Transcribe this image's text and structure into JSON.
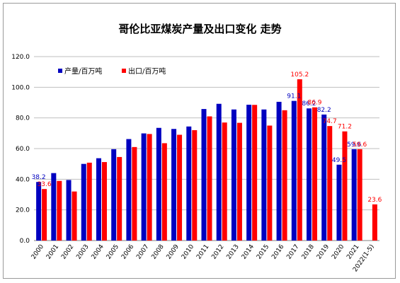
{
  "chart_data": {
    "type": "bar",
    "title": "哥伦比亚煤炭产量及出口变化 走势",
    "categories": [
      "2000",
      "2001",
      "2002",
      "2003",
      "2004",
      "2005",
      "2006",
      "2007",
      "2008",
      "2009",
      "2010",
      "2011",
      "2012",
      "2013",
      "2014",
      "2015",
      "2016",
      "2017",
      "2018",
      "2019",
      "2020",
      "2021",
      "2022(1-5)"
    ],
    "series": [
      {
        "name": "产量/百万吨",
        "color": "#0000c0",
        "values": [
          38.2,
          44.0,
          39.5,
          50.0,
          53.7,
          59.6,
          66.2,
          69.9,
          73.5,
          72.8,
          74.4,
          85.8,
          89.2,
          85.5,
          88.6,
          85.5,
          90.5,
          91.1,
          86.2,
          82.2,
          49.5,
          59.6,
          null
        ],
        "labels": {
          "0": "38.2",
          "17": "91.1",
          "18": "86.2",
          "19": "82.2",
          "20": "49.5",
          "21": "59.6"
        }
      },
      {
        "name": "出口/百万吨",
        "color": "#ff0000",
        "values": [
          33.6,
          38.9,
          32.0,
          50.8,
          51.2,
          54.5,
          61.0,
          69.5,
          63.5,
          69.0,
          72.0,
          81.0,
          77.0,
          76.8,
          88.5,
          75.0,
          85.0,
          105.2,
          86.9,
          74.7,
          71.2,
          59.6,
          23.6
        ],
        "labels": {
          "0": "33.6",
          "17": "105.2",
          "18": "86.9",
          "19": "74.7",
          "20": "71.2",
          "21": "59.6",
          "22": "23.6"
        }
      }
    ],
    "ylim": [
      0,
      120
    ],
    "yticks": [
      "0.0",
      "20.0",
      "40.0",
      "60.0",
      "80.0",
      "100.0",
      "120.0"
    ],
    "grid": true,
    "legend": "top-left"
  }
}
